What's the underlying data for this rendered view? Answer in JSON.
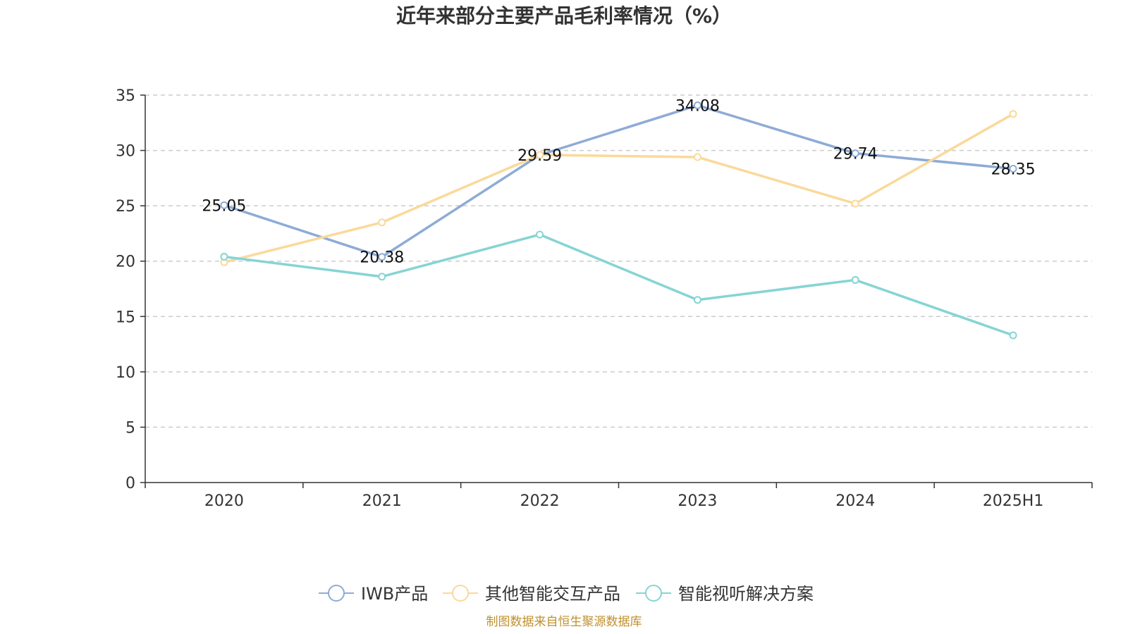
{
  "title": "近年来部分主要产品毛利率情况（%）",
  "source": "制图数据来自恒生聚源数据库",
  "chart_data": {
    "type": "line",
    "categories": [
      "2020",
      "2021",
      "2022",
      "2023",
      "2024",
      "2025H1"
    ],
    "ylim": [
      0,
      35
    ],
    "yticks": [
      0,
      5,
      10,
      15,
      20,
      25,
      30,
      35
    ],
    "grid": true,
    "legend_position": "bottom",
    "series": [
      {
        "name": "IWB产品",
        "color": "#8eabd6",
        "values": [
          25.05,
          20.38,
          29.59,
          34.08,
          29.74,
          28.35
        ],
        "show_labels": true
      },
      {
        "name": "其他智能交互产品",
        "color": "#fad99a",
        "values": [
          19.9,
          23.5,
          29.6,
          29.4,
          25.2,
          33.3
        ],
        "show_labels": false
      },
      {
        "name": "智能视听解决方案",
        "color": "#86d4d4",
        "values": [
          20.4,
          18.6,
          22.4,
          16.5,
          18.3,
          13.3
        ],
        "show_labels": false
      }
    ]
  }
}
